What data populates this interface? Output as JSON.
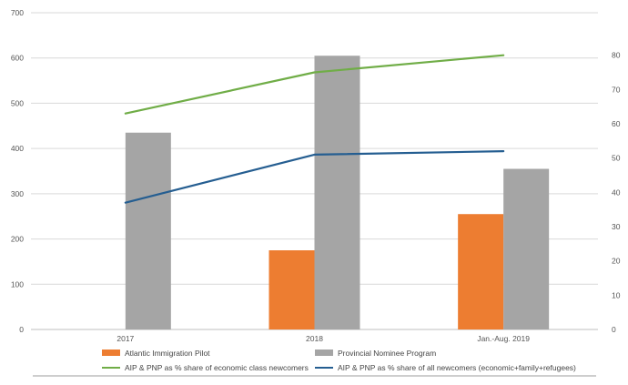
{
  "chart_data": {
    "type": "bar",
    "categories": [
      "2017",
      "2018",
      "Jan.-Aug. 2019"
    ],
    "series": [
      {
        "name": "Atlantic Immigration Pilot",
        "kind": "bar",
        "axis": "left",
        "color": "#ed7d31",
        "values": [
          0,
          175,
          255
        ]
      },
      {
        "name": "Provincial Nominee Program",
        "kind": "bar",
        "axis": "left",
        "color": "#a5a5a5",
        "values": [
          435,
          605,
          355
        ]
      },
      {
        "name": "AIP & PNP as % share of economic class newcomers",
        "kind": "line",
        "axis": "right",
        "color": "#70ad47",
        "values": [
          63,
          75,
          80
        ]
      },
      {
        "name": "AIP & PNP as % share of all newcomers (economic+family+refugees)",
        "kind": "line",
        "axis": "right",
        "color": "#255e91",
        "values": [
          37,
          51,
          52
        ]
      }
    ],
    "y_left": {
      "min": 0,
      "max": 700,
      "ticks": [
        "0",
        "100",
        "200",
        "300",
        "400",
        "500",
        "600",
        "700"
      ]
    },
    "y_right": {
      "min": 0,
      "max": 90,
      "ticks": [
        "0",
        "10",
        "20",
        "30",
        "40",
        "50",
        "60",
        "70",
        "80"
      ]
    },
    "grid": true,
    "legend_position": "bottom"
  }
}
